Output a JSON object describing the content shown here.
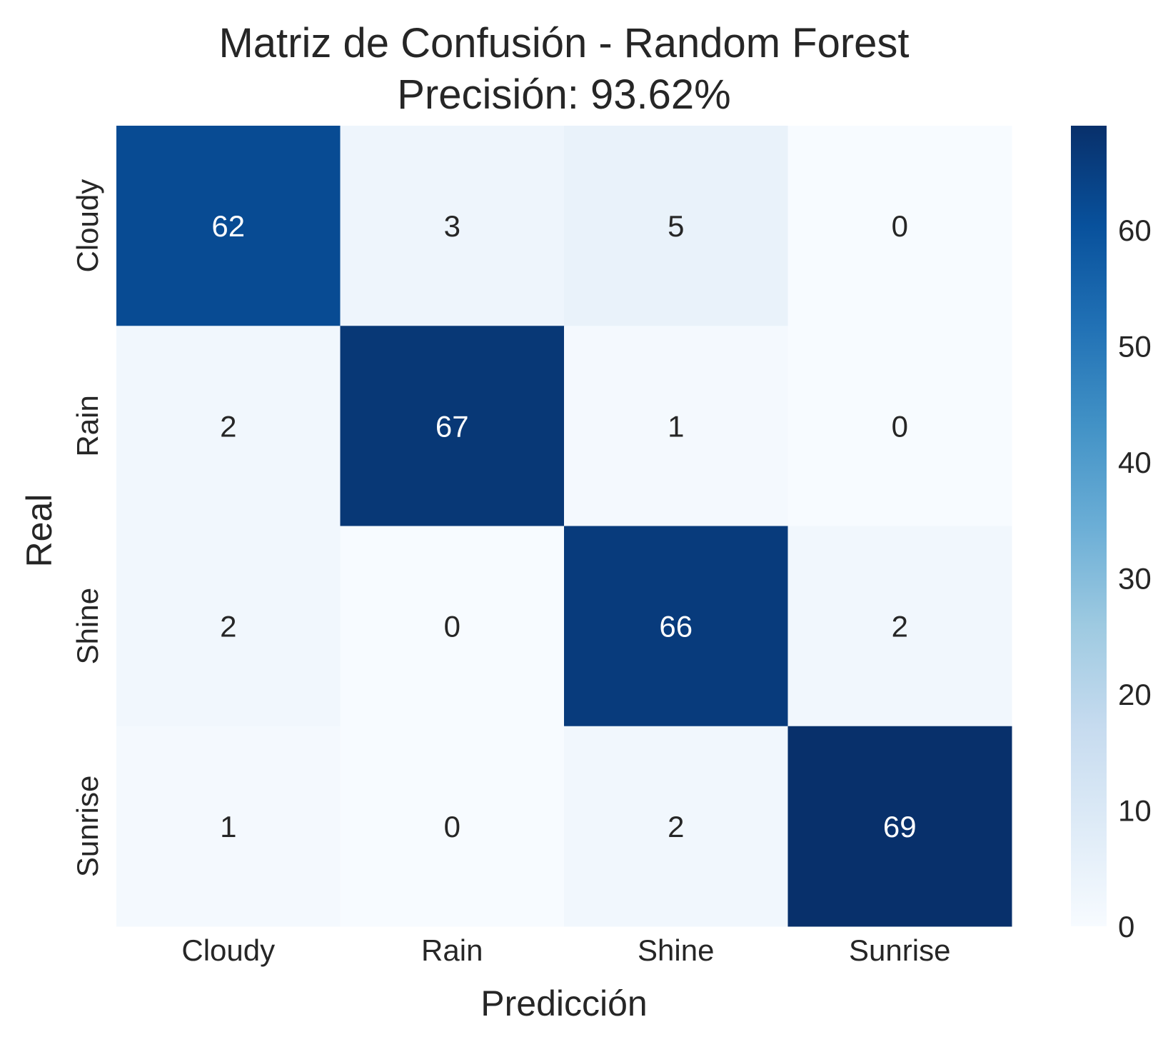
{
  "chart_data": {
    "type": "heatmap",
    "title": "Matriz de Confusión - Random Forest",
    "subtitle": "Precisión: 93.62%",
    "xlabel": "Predicción",
    "ylabel": "Real",
    "x_categories": [
      "Cloudy",
      "Rain",
      "Shine",
      "Sunrise"
    ],
    "y_categories": [
      "Cloudy",
      "Rain",
      "Shine",
      "Sunrise"
    ],
    "matrix": [
      [
        62,
        3,
        5,
        0
      ],
      [
        2,
        67,
        1,
        0
      ],
      [
        2,
        0,
        66,
        2
      ],
      [
        1,
        0,
        2,
        69
      ]
    ],
    "colorbar": {
      "min": 0,
      "max": 69,
      "ticks": [
        0,
        10,
        20,
        30,
        40,
        50,
        60
      ],
      "colormap": "Blues"
    },
    "grid": false
  }
}
